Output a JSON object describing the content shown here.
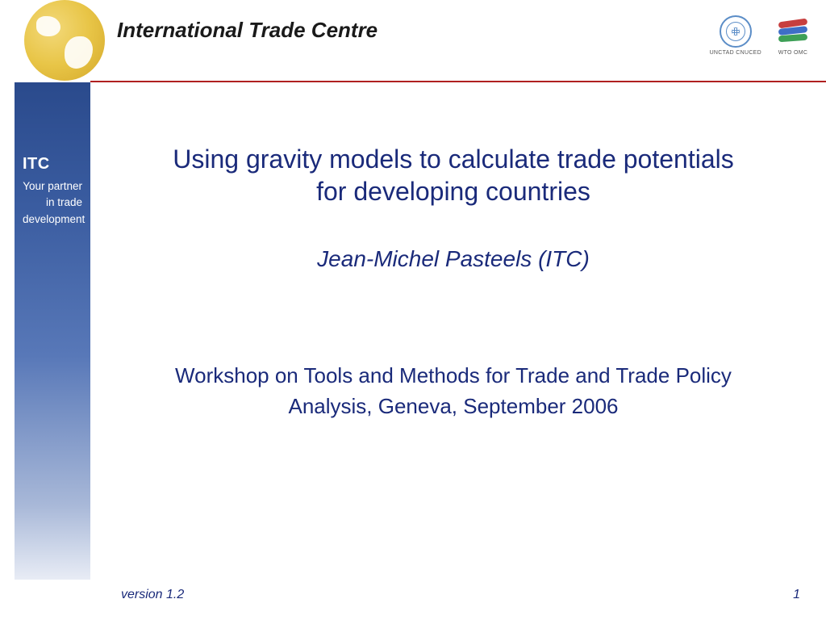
{
  "header": {
    "org_name": "International Trade Centre",
    "logos": {
      "unctad_caption": "UNCTAD CNUCED",
      "wto_caption": "WTO OMC"
    }
  },
  "sidebar": {
    "title": "ITC",
    "tagline_line1": "Your partner",
    "tagline_line2": "in trade",
    "tagline_line3": "development"
  },
  "main": {
    "title_line1": "Using gravity models to calculate trade potentials",
    "title_line2": "for developing countries",
    "author": "Jean-Michel Pasteels (ITC)",
    "workshop": "Workshop on Tools and Methods for Trade and Trade Policy Analysis, Geneva, September 2006"
  },
  "footer": {
    "version": "version 1.2",
    "page": "1"
  },
  "colors": {
    "title_text": "#1a2a7a",
    "rule": "#b02020",
    "sidebar_top": "#2a4a8c",
    "globe": "#e8c547"
  }
}
